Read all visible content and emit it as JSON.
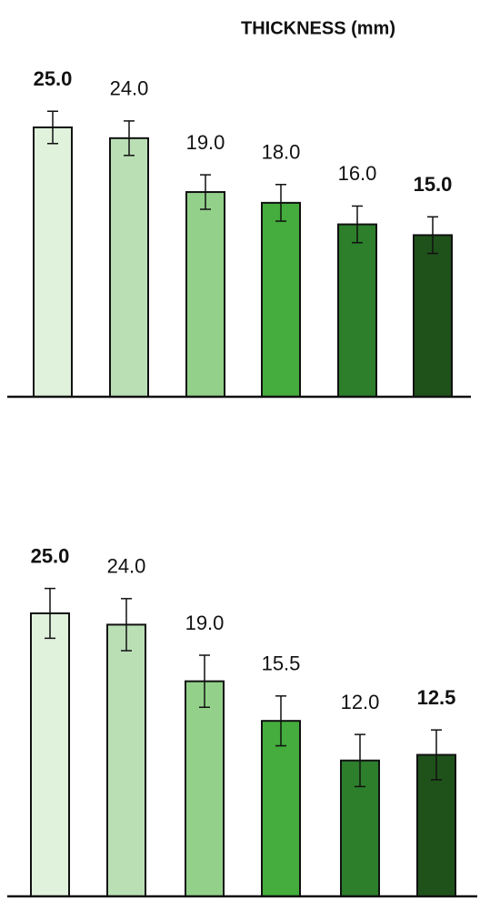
{
  "chart_data": [
    {
      "type": "bar",
      "title": "THICKNESS (mm)",
      "values": [
        25,
        24,
        19,
        18,
        16,
        15
      ],
      "value_labels": [
        "25.0",
        "24.0",
        "19.0",
        "18.0",
        "16.0",
        "15.0"
      ],
      "bold_labels": [
        true,
        false,
        false,
        false,
        false,
        true
      ],
      "errors": [
        1.5,
        1.6,
        1.6,
        1.7,
        1.7,
        1.7
      ],
      "colors": [
        "#e0f1dc",
        "#badfb5",
        "#93d18a",
        "#44ad3d",
        "#2d7f2b",
        "#1f521b"
      ]
    },
    {
      "type": "bar",
      "values": [
        25,
        24,
        19,
        15.5,
        12,
        12.5
      ],
      "value_labels": [
        "25.0",
        "24.0",
        "19.0",
        "15.5",
        "12.0",
        "12.5"
      ],
      "bold_labels": [
        true,
        false,
        false,
        false,
        false,
        true
      ],
      "errors": [
        2.2,
        2.3,
        2.3,
        2.2,
        2.3,
        2.2
      ],
      "colors": [
        "#e0f1dc",
        "#badfb5",
        "#93d18a",
        "#44ad3d",
        "#2d7f2b",
        "#1f521b"
      ]
    }
  ]
}
